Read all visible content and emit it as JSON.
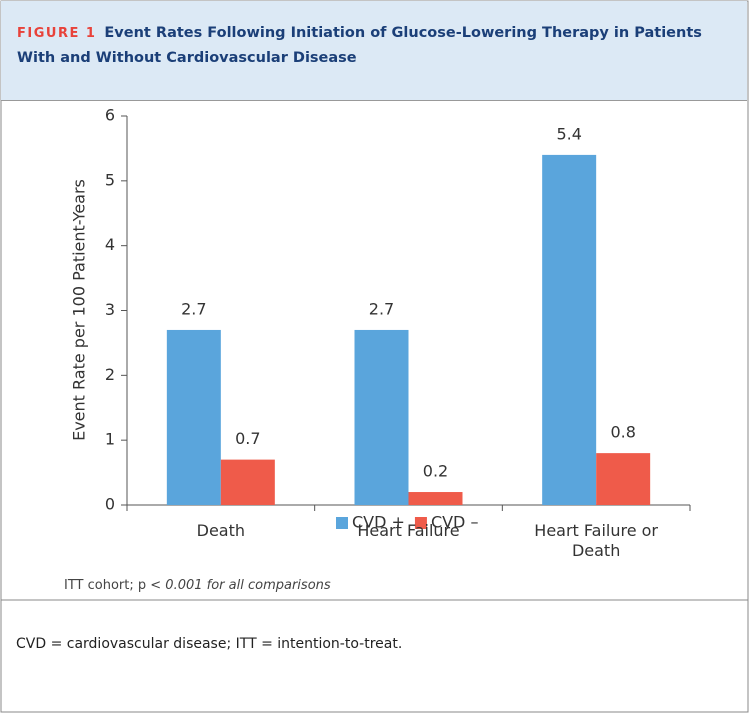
{
  "figure_label": "FIGURE 1",
  "title": "Event Rates Following Initiation of Glucose-Lowering Therapy in Patients With and Without Cardiovascular Disease",
  "chart_data": {
    "type": "bar",
    "y_label": "Event Rate per 100 Patient-Years",
    "categories": [
      "Death",
      "Heart Failure",
      "Heart Failure or Death"
    ],
    "series": [
      {
        "name": "CVD +",
        "color": "#5aa5dc",
        "values": [
          2.7,
          2.7,
          5.4
        ]
      },
      {
        "name": "CVD –",
        "color": "#ef5b4a",
        "values": [
          0.7,
          0.2,
          0.8
        ]
      }
    ],
    "ylim": [
      0,
      6
    ],
    "yticks": [
      0,
      1,
      2,
      3,
      4,
      5,
      6
    ],
    "annotation": [
      "ITT cohort; p <",
      "0.001 for all comparisons"
    ]
  },
  "caption": "CVD = cardiovascular disease; ITT = intention-to-treat."
}
